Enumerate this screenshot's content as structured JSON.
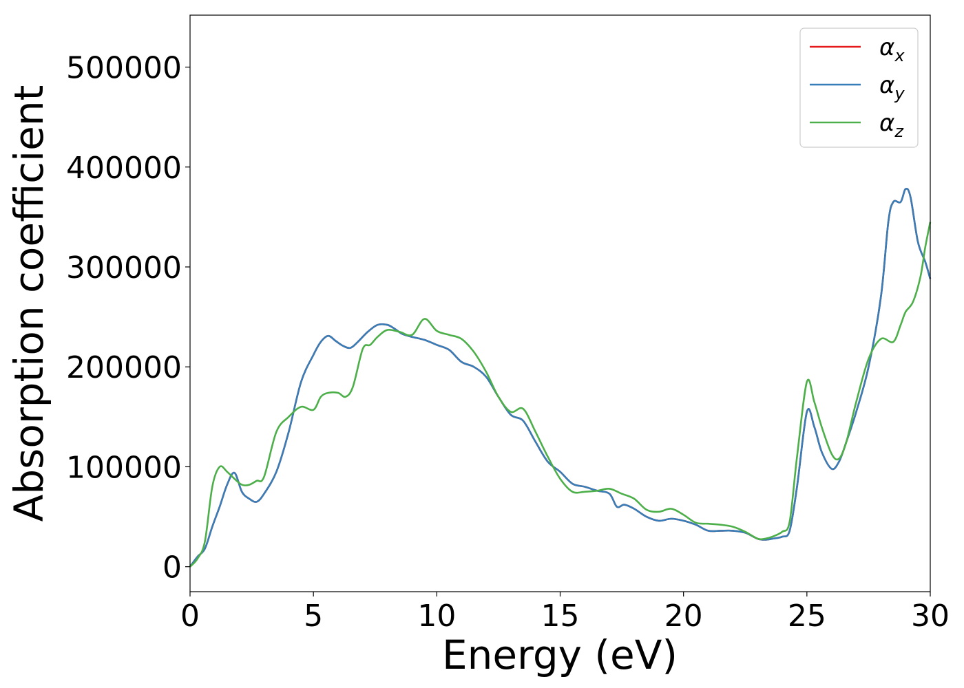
{
  "chart_data": {
    "type": "line",
    "title": "",
    "xlabel": "Energy (eV)",
    "ylabel": "Absorption coefficient",
    "xlim": [
      0,
      30
    ],
    "ylim": [
      -25000,
      552000
    ],
    "xticks": [
      0,
      5,
      10,
      15,
      20,
      25,
      30
    ],
    "yticks": [
      0,
      100000,
      200000,
      300000,
      400000,
      500000
    ],
    "grid": false,
    "legend_position": "top-right",
    "series": [
      {
        "name": "α",
        "subscript": "x",
        "color": "#e41a1c",
        "x": [
          0,
          0.3,
          0.6,
          0.9,
          1.2,
          1.5,
          1.8,
          2.1,
          2.4,
          2.7,
          3.0,
          3.5,
          4.0,
          4.5,
          5.0,
          5.3,
          5.6,
          5.9,
          6.2,
          6.5,
          6.8,
          7.2,
          7.6,
          8.0,
          8.3,
          8.6,
          9.0,
          9.5,
          10.0,
          10.5,
          11.0,
          11.5,
          12.0,
          12.5,
          13.0,
          13.5,
          14.0,
          14.5,
          15.0,
          15.5,
          16.0,
          16.5,
          17.0,
          17.3,
          17.6,
          18.0,
          18.5,
          19.0,
          19.5,
          20.0,
          20.5,
          21.0,
          21.5,
          22.0,
          22.5,
          23.0,
          23.3,
          23.6,
          24.0,
          24.3,
          24.6,
          25.0,
          25.3,
          25.6,
          26.0,
          26.3,
          26.6,
          27.0,
          27.5,
          28.0,
          28.3,
          28.5,
          28.8,
          29.0,
          29.2,
          29.5,
          29.8,
          30.0
        ],
        "y": [
          0,
          10000,
          18000,
          40000,
          60000,
          82000,
          94000,
          75000,
          68000,
          65000,
          73000,
          95000,
          135000,
          185000,
          212000,
          225000,
          231000,
          226000,
          221000,
          219000,
          225000,
          235000,
          242000,
          242000,
          238000,
          233000,
          230000,
          227000,
          222000,
          217000,
          205000,
          200000,
          190000,
          170000,
          152000,
          146000,
          125000,
          105000,
          95000,
          83000,
          80000,
          76000,
          73000,
          60000,
          62000,
          58000,
          50000,
          46000,
          48000,
          46000,
          42000,
          36000,
          36000,
          36000,
          34000,
          28000,
          27000,
          28000,
          30000,
          36000,
          80000,
          155000,
          140000,
          115000,
          98000,
          105000,
          125000,
          155000,
          200000,
          270000,
          345000,
          365000,
          365000,
          378000,
          370000,
          325000,
          305000,
          288000
        ]
      },
      {
        "name": "α",
        "subscript": "y",
        "color": "#377eb8",
        "x": [
          0,
          0.3,
          0.6,
          0.9,
          1.2,
          1.5,
          1.8,
          2.1,
          2.4,
          2.7,
          3.0,
          3.5,
          4.0,
          4.5,
          5.0,
          5.3,
          5.6,
          5.9,
          6.2,
          6.5,
          6.8,
          7.2,
          7.6,
          8.0,
          8.3,
          8.6,
          9.0,
          9.5,
          10.0,
          10.5,
          11.0,
          11.5,
          12.0,
          12.5,
          13.0,
          13.5,
          14.0,
          14.5,
          15.0,
          15.5,
          16.0,
          16.5,
          17.0,
          17.3,
          17.6,
          18.0,
          18.5,
          19.0,
          19.5,
          20.0,
          20.5,
          21.0,
          21.5,
          22.0,
          22.5,
          23.0,
          23.3,
          23.6,
          24.0,
          24.3,
          24.6,
          25.0,
          25.3,
          25.6,
          26.0,
          26.3,
          26.6,
          27.0,
          27.5,
          28.0,
          28.3,
          28.5,
          28.8,
          29.0,
          29.2,
          29.5,
          29.8,
          30.0
        ],
        "y": [
          0,
          10000,
          18000,
          40000,
          60000,
          82000,
          94000,
          75000,
          68000,
          65000,
          73000,
          95000,
          135000,
          185000,
          212000,
          225000,
          231000,
          226000,
          221000,
          219000,
          225000,
          235000,
          242000,
          242000,
          238000,
          233000,
          230000,
          227000,
          222000,
          217000,
          205000,
          200000,
          190000,
          170000,
          152000,
          146000,
          125000,
          105000,
          95000,
          83000,
          80000,
          76000,
          73000,
          60000,
          62000,
          58000,
          50000,
          46000,
          48000,
          46000,
          42000,
          36000,
          36000,
          36000,
          34000,
          28000,
          27000,
          28000,
          30000,
          36000,
          80000,
          155000,
          140000,
          115000,
          98000,
          105000,
          125000,
          155000,
          200000,
          270000,
          345000,
          365000,
          365000,
          378000,
          370000,
          325000,
          305000,
          288000
        ]
      },
      {
        "name": "α",
        "subscript": "z",
        "color": "#4daf4a",
        "x": [
          0,
          0.3,
          0.6,
          0.9,
          1.2,
          1.5,
          1.8,
          2.1,
          2.4,
          2.7,
          3.0,
          3.5,
          4.0,
          4.5,
          5.0,
          5.3,
          5.6,
          6.0,
          6.3,
          6.6,
          7.0,
          7.3,
          7.6,
          8.0,
          8.5,
          9.0,
          9.5,
          10.0,
          10.5,
          11.0,
          11.5,
          12.0,
          12.5,
          13.0,
          13.5,
          14.0,
          14.5,
          15.0,
          15.5,
          16.0,
          16.5,
          17.0,
          17.5,
          18.0,
          18.5,
          19.0,
          19.5,
          20.0,
          20.5,
          21.0,
          21.5,
          22.0,
          22.5,
          23.0,
          23.3,
          23.6,
          24.0,
          24.3,
          24.6,
          25.0,
          25.3,
          25.6,
          26.0,
          26.3,
          26.6,
          27.0,
          27.5,
          28.0,
          28.5,
          28.8,
          29.0,
          29.3,
          29.6,
          29.8,
          30.0
        ],
        "y": [
          0,
          8000,
          25000,
          80000,
          100000,
          95000,
          88000,
          82000,
          82000,
          86000,
          90000,
          135000,
          150000,
          160000,
          157000,
          170000,
          174000,
          174000,
          170000,
          180000,
          218000,
          222000,
          230000,
          237000,
          235000,
          232000,
          248000,
          236000,
          232000,
          228000,
          215000,
          195000,
          170000,
          155000,
          158000,
          135000,
          110000,
          88000,
          75000,
          75000,
          76000,
          78000,
          73000,
          68000,
          57000,
          55000,
          58000,
          52000,
          44000,
          43000,
          42000,
          40000,
          35000,
          28000,
          28000,
          30000,
          35000,
          45000,
          110000,
          185000,
          165000,
          140000,
          113000,
          108000,
          125000,
          165000,
          208000,
          228000,
          225000,
          242000,
          255000,
          265000,
          290000,
          320000,
          345000
        ]
      }
    ]
  }
}
